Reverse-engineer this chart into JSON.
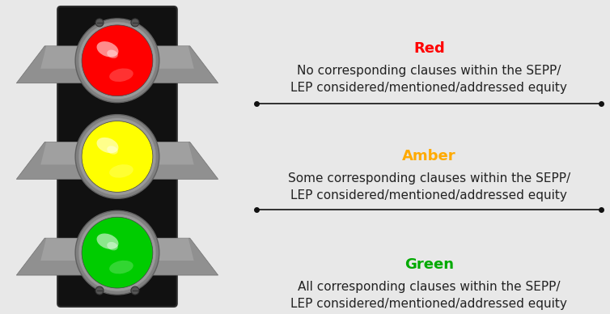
{
  "background_color": "#e8e8e8",
  "title_labels": [
    "Red",
    "Amber",
    "Green"
  ],
  "title_colors": [
    "#ff0000",
    "#ffaa00",
    "#00aa00"
  ],
  "descriptions": [
    "No corresponding clauses within the SEPP/\nLEP considered/mentioned/addressed equity",
    "Some corresponding clauses within the SEPP/\nLEP considered/mentioned/addressed equity",
    "All corresponding clauses within the SEPP/\nLEP considered/mentioned/addressed equity"
  ],
  "light_colors": [
    "#ff0000",
    "#ffff00",
    "#00cc00"
  ],
  "text_fontsize": 11,
  "title_fontsize": 13,
  "text_color": "#222222",
  "fig_width": 7.54,
  "fig_height": 3.88,
  "dpi": 100
}
